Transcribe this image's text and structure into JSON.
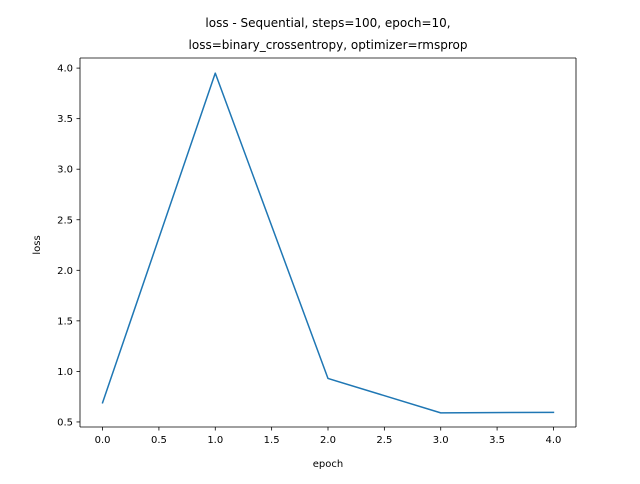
{
  "chart_data": {
    "type": "line",
    "title_lines": [
      "loss - Sequential, steps=100, epoch=10,",
      "loss=binary_crossentropy, optimizer=rmsprop"
    ],
    "xlabel": "epoch",
    "ylabel": "loss",
    "xlim": [
      -0.2,
      4.2
    ],
    "ylim": [
      0.45,
      4.1
    ],
    "xticks": [
      0.0,
      0.5,
      1.0,
      1.5,
      2.0,
      2.5,
      3.0,
      3.5,
      4.0
    ],
    "xtick_labels": [
      "0.0",
      "0.5",
      "1.0",
      "1.5",
      "2.0",
      "2.5",
      "3.0",
      "3.5",
      "4.0"
    ],
    "yticks": [
      0.5,
      1.0,
      1.5,
      2.0,
      2.5,
      3.0,
      3.5,
      4.0
    ],
    "ytick_labels": [
      "0.5",
      "1.0",
      "1.5",
      "2.0",
      "2.5",
      "3.0",
      "3.5",
      "4.0"
    ],
    "grid": false,
    "series": [
      {
        "x": [
          0,
          1,
          2,
          3,
          4
        ],
        "values": [
          0.69,
          3.95,
          0.93,
          0.59,
          0.595
        ],
        "color": "#1f77b4"
      }
    ]
  }
}
